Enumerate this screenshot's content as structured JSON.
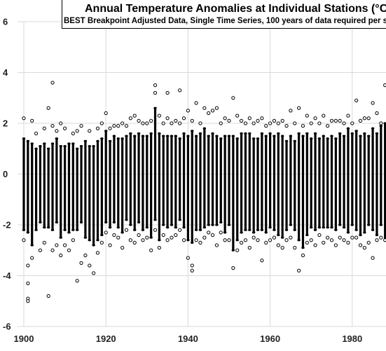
{
  "chart_data": {
    "type": "scatter",
    "title": "Annual Temperature Anomalies at Individual Stations (°C,",
    "subtitle": "BEST Breakpoint Adjusted Data, Single Time Series, 100 years of data required per s",
    "xlabel": "",
    "ylabel": "",
    "xlim": [
      1900,
      1990
    ],
    "ylim": [
      -6,
      6
    ],
    "x_ticks": [
      1900,
      1920,
      1940,
      1960,
      1980
    ],
    "y_ticks": [
      -6,
      -4,
      -2,
      0,
      2,
      4,
      6
    ],
    "x_tick_labels": [
      "1900",
      "1920",
      "1940",
      "1960",
      "1980"
    ],
    "y_tick_labels": [
      "-6",
      "-4",
      "-2",
      "0",
      "2",
      "4",
      "6"
    ],
    "grid": true,
    "marker": "open-circle",
    "dense_band": {
      "years": [
        1900,
        1901,
        1902,
        1903,
        1904,
        1905,
        1906,
        1907,
        1908,
        1909,
        1910,
        1911,
        1912,
        1913,
        1914,
        1915,
        1916,
        1917,
        1918,
        1919,
        1920,
        1921,
        1922,
        1923,
        1924,
        1925,
        1926,
        1927,
        1928,
        1929,
        1930,
        1931,
        1932,
        1933,
        1934,
        1935,
        1936,
        1937,
        1938,
        1939,
        1940,
        1941,
        1942,
        1943,
        1944,
        1945,
        1946,
        1947,
        1948,
        1949,
        1950,
        1951,
        1952,
        1953,
        1954,
        1955,
        1956,
        1957,
        1958,
        1959,
        1960,
        1961,
        1962,
        1963,
        1964,
        1965,
        1966,
        1967,
        1968,
        1969,
        1970,
        1971,
        1972,
        1973,
        1974,
        1975,
        1976,
        1977,
        1978,
        1979,
        1980,
        1981,
        1982,
        1983,
        1984,
        1985,
        1986,
        1987,
        1988,
        1989,
        1990
      ],
      "high": [
        1.4,
        1.3,
        1.2,
        1.0,
        1.1,
        1.2,
        1.0,
        1.2,
        1.4,
        1.1,
        1.1,
        1.2,
        1.2,
        1.0,
        1.1,
        1.3,
        1.1,
        1.1,
        1.3,
        1.4,
        1.7,
        1.3,
        1.5,
        1.4,
        1.4,
        1.5,
        1.6,
        1.5,
        1.6,
        1.5,
        1.5,
        1.6,
        2.6,
        1.6,
        1.5,
        1.5,
        1.5,
        1.5,
        1.4,
        1.6,
        1.5,
        1.7,
        1.5,
        1.6,
        1.8,
        1.5,
        1.6,
        1.5,
        1.4,
        1.5,
        1.5,
        1.5,
        1.4,
        1.6,
        1.6,
        1.6,
        1.4,
        1.4,
        1.6,
        1.5,
        1.6,
        1.5,
        1.6,
        1.5,
        1.3,
        1.5,
        1.3,
        1.6,
        1.5,
        1.6,
        1.4,
        1.6,
        1.4,
        1.5,
        1.4,
        1.5,
        1.4,
        1.6,
        1.5,
        1.8,
        1.6,
        1.7,
        1.5,
        1.6,
        1.5,
        1.8,
        1.6,
        1.9,
        2.0,
        1.8,
        1.9
      ],
      "low": [
        -2.2,
        -2.3,
        -2.8,
        -2.2,
        -1.9,
        -2.1,
        -2.1,
        -2.2,
        -1.9,
        -2.5,
        -2.2,
        -2.3,
        -2.2,
        -2.2,
        -1.9,
        -2.5,
        -2.6,
        -2.8,
        -2.6,
        -2.4,
        -1.9,
        -2.1,
        -1.9,
        -2.1,
        -2.3,
        -1.8,
        -2.0,
        -2.2,
        -1.9,
        -2.2,
        -2.1,
        -2.5,
        -1.8,
        -2.6,
        -2.0,
        -2.1,
        -2.0,
        -2.1,
        -1.8,
        -2.1,
        -2.6,
        -2.7,
        -2.2,
        -2.2,
        -2.1,
        -2.0,
        -2.0,
        -2.0,
        -1.9,
        -2.3,
        -2.0,
        -3.0,
        -2.6,
        -2.3,
        -2.2,
        -2.2,
        -2.3,
        -2.2,
        -2.2,
        -2.3,
        -2.1,
        -2.2,
        -2.4,
        -2.5,
        -2.2,
        -2.0,
        -2.2,
        -2.6,
        -2.9,
        -2.4,
        -2.1,
        -2.2,
        -2.1,
        -2.1,
        -2.1,
        -2.1,
        -2.2,
        -2.0,
        -2.1,
        -2.3,
        -2.0,
        -2.2,
        -2.4,
        -2.3,
        -2.0,
        -2.2,
        -2.4,
        -2.0,
        -2.6,
        -2.3,
        -2.5
      ]
    },
    "outliers": [
      {
        "x": 1900,
        "y": 2.2
      },
      {
        "x": 1900,
        "y": -2.6
      },
      {
        "x": 1901,
        "y": -3.6
      },
      {
        "x": 1901,
        "y": -4.3
      },
      {
        "x": 1901,
        "y": -4.9
      },
      {
        "x": 1901,
        "y": -5.0
      },
      {
        "x": 1902,
        "y": 2.1
      },
      {
        "x": 1902,
        "y": -3.3
      },
      {
        "x": 1903,
        "y": 1.6
      },
      {
        "x": 1904,
        "y": -3.0
      },
      {
        "x": 1905,
        "y": 1.8
      },
      {
        "x": 1905,
        "y": -2.7
      },
      {
        "x": 1906,
        "y": 2.6
      },
      {
        "x": 1906,
        "y": -4.8
      },
      {
        "x": 1907,
        "y": 3.6
      },
      {
        "x": 1907,
        "y": 1.9
      },
      {
        "x": 1907,
        "y": -3.0
      },
      {
        "x": 1908,
        "y": 1.7
      },
      {
        "x": 1908,
        "y": -2.8
      },
      {
        "x": 1909,
        "y": 2.0
      },
      {
        "x": 1909,
        "y": -3.2
      },
      {
        "x": 1910,
        "y": 1.8
      },
      {
        "x": 1910,
        "y": -2.8
      },
      {
        "x": 1911,
        "y": -3.0
      },
      {
        "x": 1912,
        "y": 1.6
      },
      {
        "x": 1912,
        "y": -2.6
      },
      {
        "x": 1913,
        "y": -4.2
      },
      {
        "x": 1913,
        "y": 1.7
      },
      {
        "x": 1914,
        "y": -3.5
      },
      {
        "x": 1914,
        "y": 1.9
      },
      {
        "x": 1915,
        "y": -3.2
      },
      {
        "x": 1916,
        "y": -3.6
      },
      {
        "x": 1916,
        "y": 1.7
      },
      {
        "x": 1917,
        "y": -3.9
      },
      {
        "x": 1918,
        "y": 1.8
      },
      {
        "x": 1918,
        "y": -3.1
      },
      {
        "x": 1919,
        "y": 2.0
      },
      {
        "x": 1919,
        "y": -2.7
      },
      {
        "x": 1920,
        "y": 2.4
      },
      {
        "x": 1920,
        "y": -2.3
      },
      {
        "x": 1921,
        "y": 1.8
      },
      {
        "x": 1921,
        "y": -2.8
      },
      {
        "x": 1922,
        "y": 1.9
      },
      {
        "x": 1922,
        "y": -2.4
      },
      {
        "x": 1923,
        "y": 1.9
      },
      {
        "x": 1923,
        "y": -2.5
      },
      {
        "x": 1924,
        "y": -2.9
      },
      {
        "x": 1924,
        "y": 2.0
      },
      {
        "x": 1925,
        "y": 1.9
      },
      {
        "x": 1925,
        "y": -2.2
      },
      {
        "x": 1926,
        "y": 2.2
      },
      {
        "x": 1926,
        "y": -2.6
      },
      {
        "x": 1927,
        "y": 2.3
      },
      {
        "x": 1927,
        "y": -2.7
      },
      {
        "x": 1928,
        "y": 2.1
      },
      {
        "x": 1928,
        "y": -2.4
      },
      {
        "x": 1929,
        "y": 2.0
      },
      {
        "x": 1929,
        "y": -2.6
      },
      {
        "x": 1930,
        "y": 2.0
      },
      {
        "x": 1930,
        "y": -2.5
      },
      {
        "x": 1931,
        "y": 2.1
      },
      {
        "x": 1931,
        "y": -3.0
      },
      {
        "x": 1932,
        "y": 3.5
      },
      {
        "x": 1932,
        "y": 3.2
      },
      {
        "x": 1932,
        "y": -2.2
      },
      {
        "x": 1933,
        "y": 2.3
      },
      {
        "x": 1933,
        "y": -2.9
      },
      {
        "x": 1934,
        "y": 2.0
      },
      {
        "x": 1934,
        "y": -2.4
      },
      {
        "x": 1935,
        "y": 3.2
      },
      {
        "x": 1935,
        "y": 2.2
      },
      {
        "x": 1935,
        "y": -2.6
      },
      {
        "x": 1936,
        "y": 2.0
      },
      {
        "x": 1936,
        "y": -2.5
      },
      {
        "x": 1937,
        "y": 2.1
      },
      {
        "x": 1937,
        "y": -2.4
      },
      {
        "x": 1938,
        "y": 3.3
      },
      {
        "x": 1938,
        "y": 2.0
      },
      {
        "x": 1938,
        "y": -2.2
      },
      {
        "x": 1939,
        "y": 2.2
      },
      {
        "x": 1939,
        "y": -2.6
      },
      {
        "x": 1940,
        "y": 2.5
      },
      {
        "x": 1940,
        "y": -3.3
      },
      {
        "x": 1941,
        "y": 2.1
      },
      {
        "x": 1941,
        "y": -3.6
      },
      {
        "x": 1941,
        "y": -3.8
      },
      {
        "x": 1942,
        "y": 2.8
      },
      {
        "x": 1942,
        "y": -2.6
      },
      {
        "x": 1943,
        "y": 2.0
      },
      {
        "x": 1943,
        "y": -2.7
      },
      {
        "x": 1944,
        "y": 2.6
      },
      {
        "x": 1944,
        "y": -2.5
      },
      {
        "x": 1945,
        "y": 2.4
      },
      {
        "x": 1945,
        "y": -2.3
      },
      {
        "x": 1946,
        "y": 2.5
      },
      {
        "x": 1946,
        "y": -2.4
      },
      {
        "x": 1947,
        "y": 2.6
      },
      {
        "x": 1947,
        "y": -2.8
      },
      {
        "x": 1948,
        "y": 2.0
      },
      {
        "x": 1948,
        "y": -2.3
      },
      {
        "x": 1949,
        "y": 2.2
      },
      {
        "x": 1949,
        "y": -2.6
      },
      {
        "x": 1950,
        "y": 2.1
      },
      {
        "x": 1950,
        "y": -2.6
      },
      {
        "x": 1951,
        "y": 3.0
      },
      {
        "x": 1951,
        "y": -3.7
      },
      {
        "x": 1952,
        "y": 2.3
      },
      {
        "x": 1952,
        "y": -3.0
      },
      {
        "x": 1953,
        "y": 2.1
      },
      {
        "x": 1953,
        "y": -2.7
      },
      {
        "x": 1954,
        "y": 2.0
      },
      {
        "x": 1954,
        "y": -2.6
      },
      {
        "x": 1955,
        "y": 2.2
      },
      {
        "x": 1955,
        "y": -2.9
      },
      {
        "x": 1956,
        "y": 2.0
      },
      {
        "x": 1956,
        "y": -2.5
      },
      {
        "x": 1957,
        "y": 2.1
      },
      {
        "x": 1957,
        "y": -2.6
      },
      {
        "x": 1958,
        "y": 2.2
      },
      {
        "x": 1958,
        "y": -3.4
      },
      {
        "x": 1959,
        "y": 1.9
      },
      {
        "x": 1959,
        "y": -2.7
      },
      {
        "x": 1960,
        "y": 2.0
      },
      {
        "x": 1960,
        "y": -2.6
      },
      {
        "x": 1961,
        "y": 2.1
      },
      {
        "x": 1961,
        "y": -2.5
      },
      {
        "x": 1962,
        "y": 2.0
      },
      {
        "x": 1962,
        "y": -2.8
      },
      {
        "x": 1963,
        "y": 2.1
      },
      {
        "x": 1963,
        "y": -2.9
      },
      {
        "x": 1964,
        "y": 1.9
      },
      {
        "x": 1964,
        "y": -2.6
      },
      {
        "x": 1965,
        "y": 2.5
      },
      {
        "x": 1965,
        "y": -2.5
      },
      {
        "x": 1966,
        "y": 2.0
      },
      {
        "x": 1966,
        "y": -2.9
      },
      {
        "x": 1967,
        "y": 2.6
      },
      {
        "x": 1967,
        "y": -3.8
      },
      {
        "x": 1968,
        "y": 1.9
      },
      {
        "x": 1968,
        "y": -3.2
      },
      {
        "x": 1969,
        "y": 2.3
      },
      {
        "x": 1969,
        "y": -2.7
      },
      {
        "x": 1970,
        "y": 2.0
      },
      {
        "x": 1970,
        "y": -2.6
      },
      {
        "x": 1971,
        "y": 2.2
      },
      {
        "x": 1971,
        "y": -2.8
      },
      {
        "x": 1972,
        "y": 2.0
      },
      {
        "x": 1972,
        "y": -2.4
      },
      {
        "x": 1973,
        "y": 2.3
      },
      {
        "x": 1973,
        "y": -2.7
      },
      {
        "x": 1974,
        "y": 1.9
      },
      {
        "x": 1974,
        "y": -2.5
      },
      {
        "x": 1975,
        "y": 2.1
      },
      {
        "x": 1975,
        "y": -2.6
      },
      {
        "x": 1976,
        "y": 2.1
      },
      {
        "x": 1976,
        "y": -2.8
      },
      {
        "x": 1977,
        "y": 2.1
      },
      {
        "x": 1977,
        "y": -2.5
      },
      {
        "x": 1978,
        "y": 2.0
      },
      {
        "x": 1978,
        "y": -2.6
      },
      {
        "x": 1979,
        "y": 2.3
      },
      {
        "x": 1979,
        "y": -2.7
      },
      {
        "x": 1980,
        "y": 2.0
      },
      {
        "x": 1980,
        "y": -2.5
      },
      {
        "x": 1981,
        "y": 2.9
      },
      {
        "x": 1981,
        "y": -2.5
      },
      {
        "x": 1982,
        "y": 2.1
      },
      {
        "x": 1982,
        "y": -2.8
      },
      {
        "x": 1983,
        "y": 2.2
      },
      {
        "x": 1983,
        "y": -2.9
      },
      {
        "x": 1984,
        "y": 2.2
      },
      {
        "x": 1984,
        "y": -2.7
      },
      {
        "x": 1985,
        "y": 2.8
      },
      {
        "x": 1985,
        "y": -3.3
      },
      {
        "x": 1986,
        "y": 2.4
      },
      {
        "x": 1986,
        "y": -2.6
      },
      {
        "x": 1987,
        "y": 2.0
      },
      {
        "x": 1987,
        "y": -2.5
      },
      {
        "x": 1988,
        "y": 3.5
      },
      {
        "x": 1988,
        "y": -2.6
      },
      {
        "x": 1989,
        "y": 2.3
      },
      {
        "x": 1989,
        "y": -2.4
      },
      {
        "x": 1990,
        "y": 2.6
      },
      {
        "x": 1990,
        "y": -2.6
      }
    ]
  }
}
